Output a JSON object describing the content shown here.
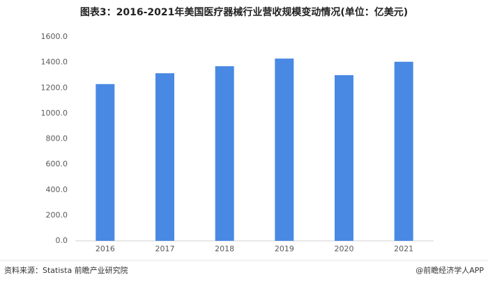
{
  "chart_data": {
    "type": "bar",
    "title": "图表3：2016-2021年美国医疗器械行业营收规模变动情况(单位：亿美元)",
    "categories": [
      "2016",
      "2017",
      "2018",
      "2019",
      "2020",
      "2021"
    ],
    "values": [
      1230,
      1315,
      1370,
      1430,
      1300,
      1405
    ],
    "color": "#4a89e3",
    "ylim": [
      0,
      1600
    ],
    "yticks": [
      {
        "value": 0,
        "label": "0.0"
      },
      {
        "value": 200,
        "label": "200.0"
      },
      {
        "value": 400,
        "label": "400.0"
      },
      {
        "value": 600,
        "label": "600.0"
      },
      {
        "value": 800,
        "label": "800.0"
      },
      {
        "value": 1000,
        "label": "1000.0"
      },
      {
        "value": 1200,
        "label": "1200.0"
      },
      {
        "value": 1400,
        "label": "1400.0"
      },
      {
        "value": 1600,
        "label": "1600.0"
      }
    ],
    "grid": false
  },
  "footer": {
    "source": "资料来源：Statista 前瞻产业研究院",
    "credit": "@前瞻经济学人APP"
  }
}
